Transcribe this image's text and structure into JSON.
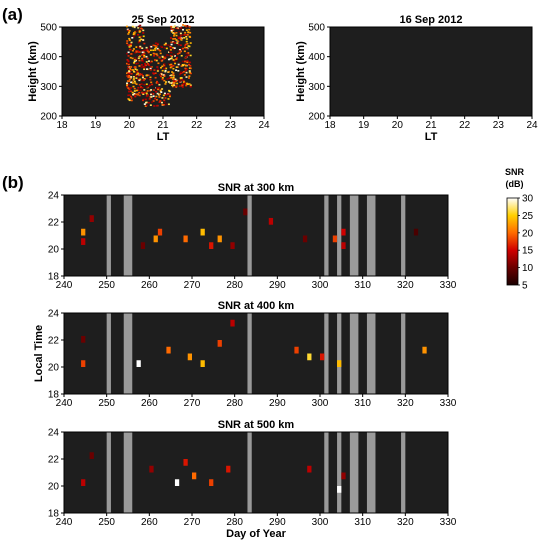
{
  "figure": {
    "panel_a_label": "(a)",
    "panel_b_label": "(b)",
    "colors": {
      "background": "#1e1e1e",
      "gap": "#9a9a9a"
    }
  },
  "chart_data": [
    {
      "type": "heatmap",
      "panel": "(a)",
      "title": "25 Sep 2012",
      "xlabel": "LT",
      "ylabel": "Height (km)",
      "xlim": [
        18,
        24
      ],
      "ylim": [
        200,
        500
      ],
      "xticks": [
        18,
        19,
        20,
        21,
        22,
        23,
        24
      ],
      "yticks": [
        200,
        300,
        400,
        500
      ],
      "echo_regions": [
        {
          "lt": [
            19.9,
            20.4
          ],
          "height_km": [
            255,
            510
          ],
          "snr_db": [
            10,
            30
          ]
        },
        {
          "lt": [
            20.4,
            21.2
          ],
          "height_km": [
            235,
            450
          ],
          "snr_db": [
            10,
            30
          ]
        },
        {
          "lt": [
            21.2,
            21.8
          ],
          "height_km": [
            300,
            510
          ],
          "snr_db": [
            10,
            30
          ]
        }
      ]
    },
    {
      "type": "heatmap",
      "panel": "(a)",
      "title": "16 Sep 2012",
      "xlabel": "LT",
      "ylabel": "Height (km)",
      "xlim": [
        18,
        24
      ],
      "ylim": [
        200,
        500
      ],
      "xticks": [
        18,
        19,
        20,
        21,
        22,
        23,
        24
      ],
      "yticks": [
        200,
        300,
        400,
        500
      ],
      "echo_regions": []
    },
    {
      "type": "heatmap",
      "panel": "(b)",
      "title": "SNR at 300 km",
      "xlim": [
        240,
        330
      ],
      "ylim": [
        18,
        24
      ],
      "xticks": [
        240,
        250,
        260,
        270,
        280,
        290,
        300,
        310,
        320,
        330
      ],
      "yticks": [
        18,
        20,
        22,
        24
      ],
      "no_data_days": [
        [
          250,
          251
        ],
        [
          254,
          256
        ],
        [
          283,
          284
        ],
        [
          301,
          302
        ],
        [
          304,
          305
        ],
        [
          307,
          309
        ],
        [
          311,
          313
        ],
        [
          319,
          320
        ]
      ],
      "echo_cells": [
        [
          244,
          21,
          22
        ],
        [
          244,
          20.3,
          14
        ],
        [
          246,
          22,
          12
        ],
        [
          258,
          20,
          10
        ],
        [
          261,
          20.5,
          22
        ],
        [
          262,
          21,
          18
        ],
        [
          268,
          20.5,
          20
        ],
        [
          272,
          21,
          24
        ],
        [
          274,
          20,
          16
        ],
        [
          276,
          20.5,
          22
        ],
        [
          279,
          20,
          12
        ],
        [
          282,
          22.5,
          10
        ],
        [
          288,
          21.8,
          14
        ],
        [
          296,
          20.5,
          10
        ],
        [
          303,
          20.5,
          18
        ],
        [
          305,
          21,
          15
        ],
        [
          305,
          20,
          14
        ],
        [
          322,
          21,
          8
        ]
      ]
    },
    {
      "type": "heatmap",
      "panel": "(b)",
      "title": "SNR at 400 km",
      "ylabel": "Local Time",
      "xlim": [
        240,
        330
      ],
      "ylim": [
        18,
        24
      ],
      "xticks": [
        240,
        250,
        260,
        270,
        280,
        290,
        300,
        310,
        320,
        330
      ],
      "yticks": [
        18,
        20,
        22,
        24
      ],
      "no_data_days": [
        [
          250,
          251
        ],
        [
          254,
          256
        ],
        [
          283,
          284
        ],
        [
          301,
          302
        ],
        [
          304,
          305
        ],
        [
          307,
          309
        ],
        [
          311,
          313
        ],
        [
          319,
          320
        ]
      ],
      "echo_cells": [
        [
          244,
          20,
          18
        ],
        [
          244,
          21.8,
          10
        ],
        [
          257,
          20,
          30
        ],
        [
          264,
          21,
          20
        ],
        [
          269,
          20.5,
          22
        ],
        [
          272,
          20,
          24
        ],
        [
          276,
          21.5,
          18
        ],
        [
          279,
          23,
          14
        ],
        [
          294,
          21,
          18
        ],
        [
          297,
          20.5,
          26
        ],
        [
          300,
          20.5,
          16
        ],
        [
          304,
          20,
          24
        ],
        [
          324,
          21,
          22
        ]
      ]
    },
    {
      "type": "heatmap",
      "panel": "(b)",
      "title": "SNR at 500 km",
      "xlabel": "Day of Year",
      "xlim": [
        240,
        330
      ],
      "ylim": [
        18,
        24
      ],
      "xticks": [
        240,
        250,
        260,
        270,
        280,
        290,
        300,
        310,
        320,
        330
      ],
      "yticks": [
        18,
        20,
        22,
        24
      ],
      "no_data_days": [
        [
          250,
          251
        ],
        [
          254,
          256
        ],
        [
          283,
          284
        ],
        [
          301,
          302
        ],
        [
          304,
          305
        ],
        [
          307,
          309
        ],
        [
          311,
          313
        ],
        [
          319,
          320
        ]
      ],
      "echo_cells": [
        [
          244,
          20,
          14
        ],
        [
          246,
          22,
          10
        ],
        [
          260,
          21,
          12
        ],
        [
          266,
          20,
          30
        ],
        [
          268,
          21.5,
          16
        ],
        [
          270,
          20.5,
          20
        ],
        [
          274,
          20,
          18
        ],
        [
          278,
          21,
          16
        ],
        [
          297,
          21,
          14
        ],
        [
          304,
          19.5,
          30
        ],
        [
          305,
          20.5,
          12
        ]
      ]
    },
    {
      "type": "colorbar",
      "title": "SNR",
      "unit": "(dB)",
      "range": [
        5,
        30
      ],
      "ticks": [
        5,
        10,
        15,
        20,
        25,
        30
      ]
    }
  ]
}
